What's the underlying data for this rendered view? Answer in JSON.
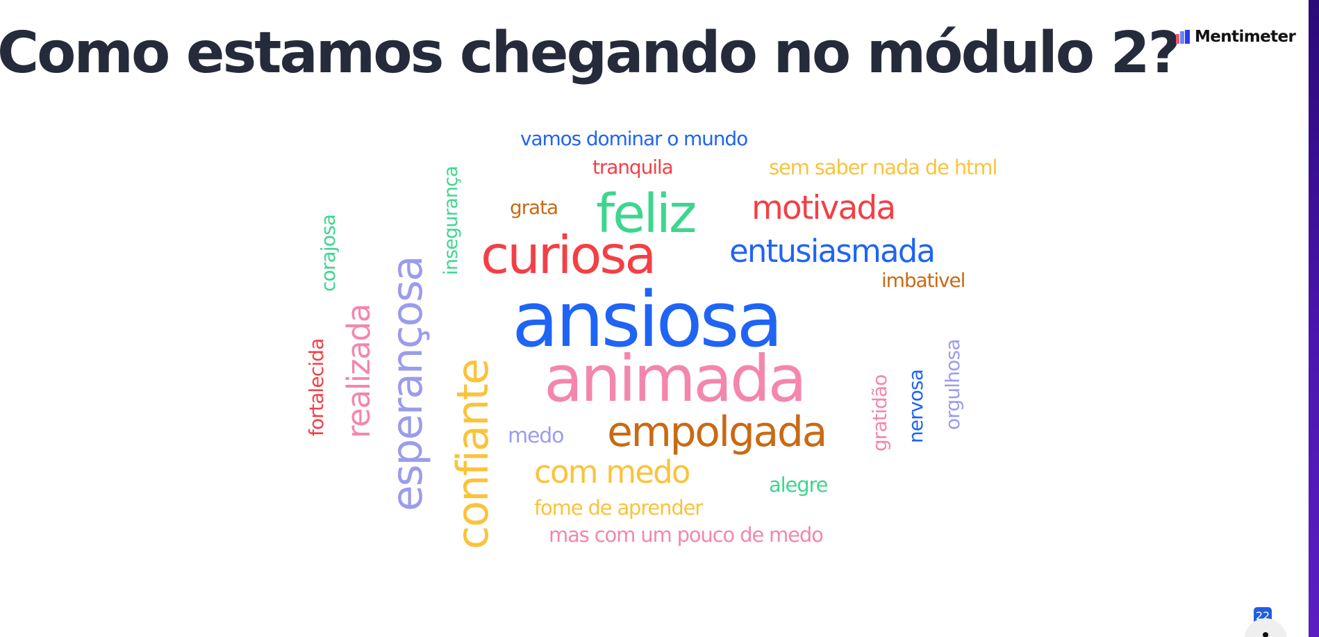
{
  "slide": {
    "title": "Como estamos chegando no módulo 2?",
    "page_number": "22"
  },
  "brand": {
    "name": "Mentimeter",
    "icon": "mentimeter-logo-icon"
  },
  "colors": {
    "title": "#252b3a",
    "blue": "#1f64f5",
    "red": "#f43f45",
    "green": "#3ed68f",
    "pink": "#f486ad",
    "lavender": "#9c9cec",
    "yellow": "#fac33a",
    "orange": "#c96a14",
    "accent_strip": "#3b0fa0"
  },
  "word_cloud": {
    "words": [
      {
        "text": "vamos dominar o mundo",
        "color": "#1f64f5"
      },
      {
        "text": "tranquila",
        "color": "#f43f45"
      },
      {
        "text": "sem saber nada de html",
        "color": "#fac33a"
      },
      {
        "text": "grata",
        "color": "#c96a14"
      },
      {
        "text": "feliz",
        "color": "#3ed68f"
      },
      {
        "text": "motivada",
        "color": "#f43f45"
      },
      {
        "text": "curiosa",
        "color": "#f43f45"
      },
      {
        "text": "entusiasmada",
        "color": "#1f64f5"
      },
      {
        "text": "imbativel",
        "color": "#c96a14"
      },
      {
        "text": "ansiosa",
        "color": "#1f64f5"
      },
      {
        "text": "animada",
        "color": "#f486ad"
      },
      {
        "text": "empolgada",
        "color": "#c96a14"
      },
      {
        "text": "medo",
        "color": "#9c9cec"
      },
      {
        "text": "com medo",
        "color": "#fac33a"
      },
      {
        "text": "alegre",
        "color": "#3ed68f"
      },
      {
        "text": "fome de aprender",
        "color": "#fac33a"
      },
      {
        "text": "mas com um pouco de medo",
        "color": "#f486ad"
      },
      {
        "text": "corajosa",
        "color": "#3ed68f"
      },
      {
        "text": "fortalecida",
        "color": "#f43f45"
      },
      {
        "text": "realizada",
        "color": "#f486ad"
      },
      {
        "text": "esperançosa",
        "color": "#9c9cec"
      },
      {
        "text": "insegurança",
        "color": "#3ed68f"
      },
      {
        "text": "confiante",
        "color": "#fac33a"
      },
      {
        "text": "gratidão",
        "color": "#f486ad"
      },
      {
        "text": "nervosa",
        "color": "#1f64f5"
      },
      {
        "text": "orgulhosa",
        "color": "#9c9cec"
      }
    ]
  },
  "controls": {
    "participant_icon": "person-icon"
  }
}
